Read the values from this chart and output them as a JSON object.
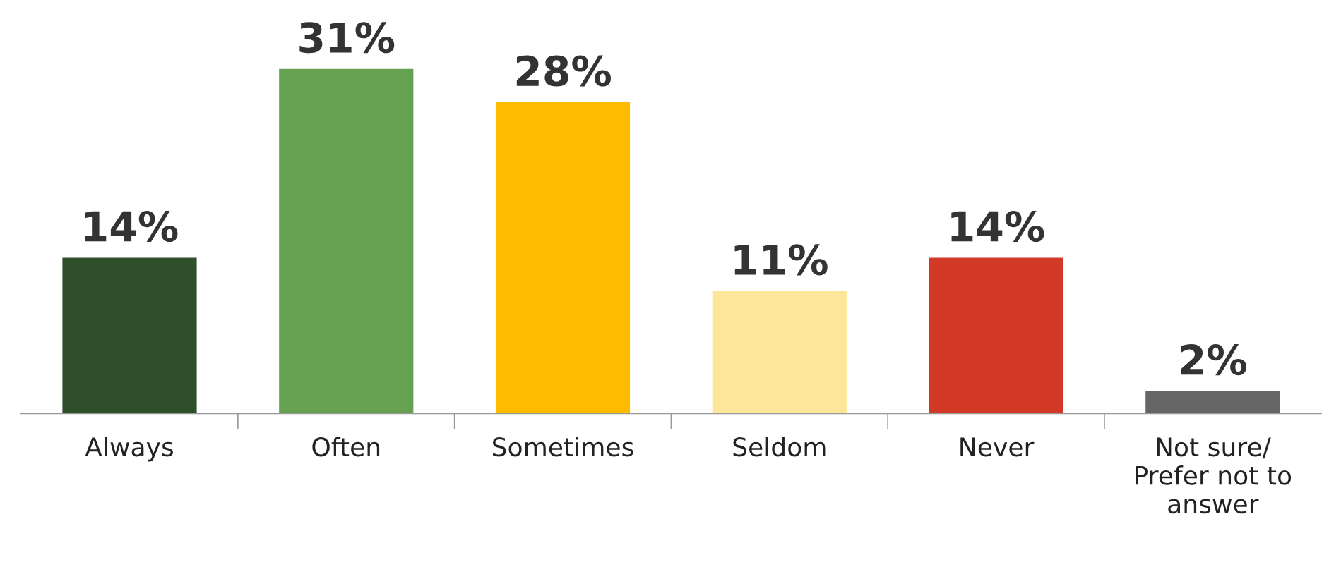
{
  "chart_data": {
    "type": "bar",
    "categories": [
      "Always",
      "Often",
      "Sometimes",
      "Seldom",
      "Never",
      "Not sure/\nPrefer not to\nanswer"
    ],
    "values": [
      14,
      31,
      28,
      11,
      14,
      2
    ],
    "colors": [
      "#2f4f2b",
      "#66a051",
      "#ffbb00",
      "#fde59a",
      "#d23a27",
      "#666666"
    ],
    "value_labels": [
      "14%",
      "31%",
      "28%",
      "11%",
      "14%",
      "2%"
    ],
    "grid": false,
    "legend": false
  }
}
